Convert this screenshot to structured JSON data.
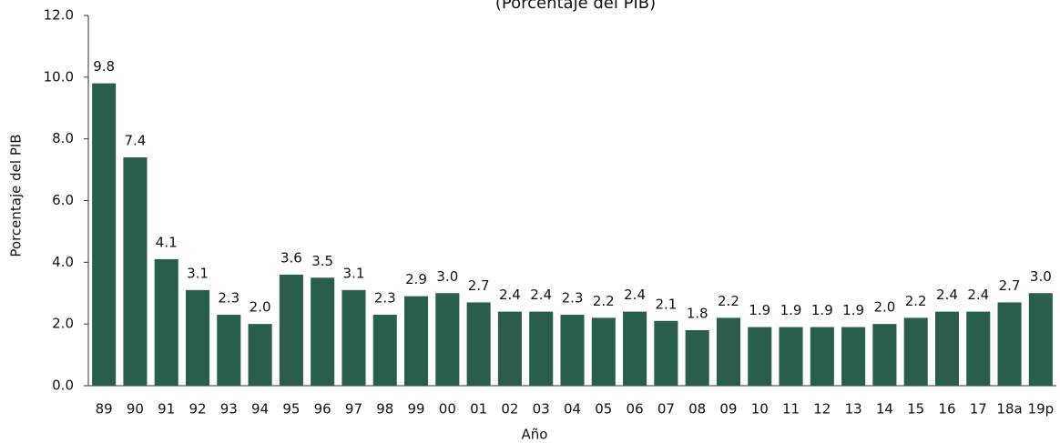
{
  "chart_data": {
    "type": "bar",
    "subtitle": "(Porcentaje del PIB)",
    "x_label": "Año",
    "y_label": "Porcentaje del PIB",
    "categories": [
      "89",
      "90",
      "91",
      "92",
      "93",
      "94",
      "95",
      "96",
      "97",
      "98",
      "99",
      "00",
      "01",
      "02",
      "03",
      "04",
      "05",
      "06",
      "07",
      "08",
      "09",
      "10",
      "11",
      "12",
      "13",
      "14",
      "15",
      "16",
      "17",
      "18a",
      "19p"
    ],
    "values": [
      9.8,
      7.4,
      4.1,
      3.1,
      2.3,
      2.0,
      3.6,
      3.5,
      3.1,
      2.3,
      2.9,
      3.0,
      2.7,
      2.4,
      2.4,
      2.3,
      2.2,
      2.4,
      2.1,
      1.8,
      2.2,
      1.9,
      1.9,
      1.9,
      1.9,
      2.0,
      2.2,
      2.4,
      2.4,
      2.7,
      3.0
    ],
    "value_labels": [
      "9.8",
      "7.4",
      "4.1",
      "3.1",
      "2.3",
      "2.0",
      "3.6",
      "3.5",
      "3.1",
      "2.3",
      "2.9",
      "3.0",
      "2.7",
      "2.4",
      "2.4",
      "2.3",
      "2.2",
      "2.4",
      "2.1",
      "1.8",
      "2.2",
      "1.9",
      "1.9",
      "1.9",
      "1.9",
      "2.0",
      "2.2",
      "2.4",
      "2.4",
      "2.7",
      "3.0"
    ],
    "color": "#285e4b",
    "ylim": [
      0,
      12
    ],
    "yticks": [
      {
        "value": 0,
        "label": "0.0"
      },
      {
        "value": 2,
        "label": "2.0"
      },
      {
        "value": 4,
        "label": "4.0"
      },
      {
        "value": 6,
        "label": "6.0"
      },
      {
        "value": 8,
        "label": "8.0"
      },
      {
        "value": 10,
        "label": "10.0"
      },
      {
        "value": 12,
        "label": "12.0"
      }
    ],
    "grid": false
  }
}
